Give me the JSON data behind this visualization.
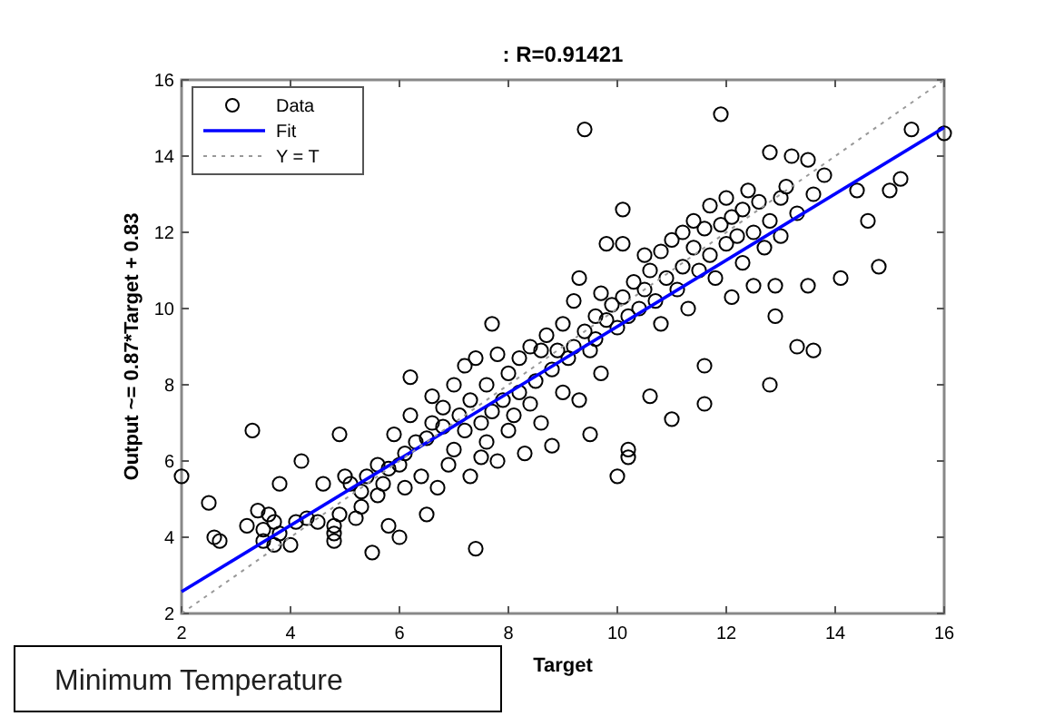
{
  "chart_data": {
    "type": "scatter",
    "title": ": R=0.91421",
    "xlabel": "Target",
    "ylabel": "Output ~= 0.87*Target + 0.83",
    "annotations": [
      "Minimum Temperature"
    ],
    "xlim": [
      2,
      16
    ],
    "ylim": [
      2,
      16
    ],
    "xticks": [
      2,
      4,
      6,
      8,
      10,
      12,
      14,
      16
    ],
    "yticks": [
      2,
      4,
      6,
      8,
      10,
      12,
      14,
      16
    ],
    "grid": false,
    "legend": "top left",
    "series": [
      {
        "name": "Data",
        "color": "#000000",
        "marker": "circle",
        "x": [
          2.0,
          2.5,
          2.6,
          2.7,
          3.2,
          3.3,
          3.4,
          3.5,
          3.5,
          3.6,
          3.7,
          3.7,
          3.8,
          3.8,
          4.0,
          4.1,
          4.2,
          4.3,
          4.5,
          4.6,
          4.8,
          4.8,
          4.8,
          4.9,
          4.9,
          5.0,
          5.1,
          5.2,
          5.3,
          5.3,
          5.4,
          5.5,
          5.6,
          5.6,
          5.7,
          5.8,
          5.8,
          5.9,
          6.0,
          6.0,
          6.1,
          6.1,
          6.2,
          6.2,
          6.3,
          6.4,
          6.5,
          6.5,
          6.6,
          6.6,
          6.7,
          6.8,
          6.8,
          6.9,
          7.0,
          7.0,
          7.1,
          7.2,
          7.2,
          7.3,
          7.3,
          7.4,
          7.4,
          7.5,
          7.5,
          7.6,
          7.6,
          7.7,
          7.7,
          7.8,
          7.8,
          7.9,
          8.0,
          8.0,
          8.1,
          8.2,
          8.2,
          8.3,
          8.4,
          8.4,
          8.5,
          8.6,
          8.6,
          8.7,
          8.8,
          8.8,
          8.9,
          9.0,
          9.0,
          9.1,
          9.2,
          9.2,
          9.3,
          9.3,
          9.4,
          9.4,
          9.5,
          9.5,
          9.6,
          9.6,
          9.7,
          9.7,
          9.8,
          9.8,
          9.9,
          10.0,
          10.0,
          10.1,
          10.1,
          10.1,
          10.2,
          10.2,
          10.2,
          10.3,
          10.4,
          10.5,
          10.5,
          10.6,
          10.6,
          10.7,
          10.8,
          10.8,
          10.9,
          11.0,
          11.0,
          11.1,
          11.2,
          11.2,
          11.3,
          11.4,
          11.4,
          11.5,
          11.6,
          11.6,
          11.6,
          11.7,
          11.7,
          11.8,
          11.9,
          11.9,
          12.0,
          12.0,
          12.1,
          12.1,
          12.2,
          12.3,
          12.3,
          12.4,
          12.5,
          12.5,
          12.6,
          12.7,
          12.8,
          12.8,
          12.8,
          12.9,
          12.9,
          13.0,
          13.0,
          13.1,
          13.2,
          13.3,
          13.3,
          13.5,
          13.5,
          13.6,
          13.6,
          13.8,
          14.1,
          14.4,
          14.6,
          14.8,
          15.0,
          15.2,
          15.4,
          16.0
        ],
        "values": [
          5.6,
          4.9,
          4.0,
          3.9,
          4.3,
          6.8,
          4.7,
          4.2,
          3.9,
          4.6,
          4.4,
          3.8,
          5.4,
          4.1,
          3.8,
          4.4,
          6.0,
          4.5,
          4.4,
          5.4,
          4.3,
          3.9,
          4.1,
          6.7,
          4.6,
          5.6,
          5.4,
          4.5,
          4.8,
          5.2,
          5.6,
          3.6,
          5.9,
          5.1,
          5.4,
          4.3,
          5.8,
          6.7,
          5.9,
          4.0,
          6.2,
          5.3,
          7.2,
          8.2,
          6.5,
          5.6,
          4.6,
          6.6,
          7.7,
          7.0,
          5.3,
          7.4,
          6.9,
          5.9,
          8.0,
          6.3,
          7.2,
          8.5,
          6.8,
          7.6,
          5.6,
          3.7,
          8.7,
          7.0,
          6.1,
          8.0,
          6.5,
          9.6,
          7.3,
          6.0,
          8.8,
          7.6,
          8.3,
          6.8,
          7.2,
          8.7,
          7.8,
          6.2,
          9.0,
          7.5,
          8.1,
          8.9,
          7.0,
          9.3,
          6.4,
          8.4,
          8.9,
          9.6,
          7.8,
          8.7,
          10.2,
          9.0,
          7.6,
          10.8,
          14.7,
          9.4,
          6.7,
          8.9,
          9.8,
          9.2,
          8.3,
          10.4,
          9.7,
          11.7,
          10.1,
          5.6,
          9.5,
          12.6,
          11.7,
          10.3,
          6.3,
          6.1,
          9.8,
          10.7,
          10.0,
          11.4,
          10.5,
          7.7,
          11.0,
          10.2,
          11.5,
          9.6,
          10.8,
          7.1,
          11.8,
          10.5,
          12.0,
          11.1,
          10.0,
          11.6,
          12.3,
          11.0,
          8.5,
          7.5,
          12.1,
          11.4,
          12.7,
          10.8,
          15.1,
          12.2,
          11.7,
          12.9,
          10.3,
          12.4,
          11.9,
          12.6,
          11.2,
          13.1,
          12.0,
          10.6,
          12.8,
          11.6,
          8.0,
          12.3,
          14.1,
          10.6,
          9.8,
          12.9,
          11.9,
          13.2,
          14.0,
          9.0,
          12.5,
          13.9,
          10.6,
          8.9,
          13.0,
          13.5,
          10.8,
          13.1,
          12.3,
          11.1,
          13.1,
          13.4,
          14.7,
          14.6
        ]
      },
      {
        "name": "Fit",
        "type": "line",
        "color": "#0000ff",
        "line_style": "solid",
        "x": [
          2,
          16
        ],
        "values": [
          2.57,
          14.75
        ]
      },
      {
        "name": "Y = T",
        "type": "line",
        "color": "#999999",
        "line_style": "dotted",
        "x": [
          2,
          16
        ],
        "values": [
          2,
          16
        ]
      }
    ]
  }
}
